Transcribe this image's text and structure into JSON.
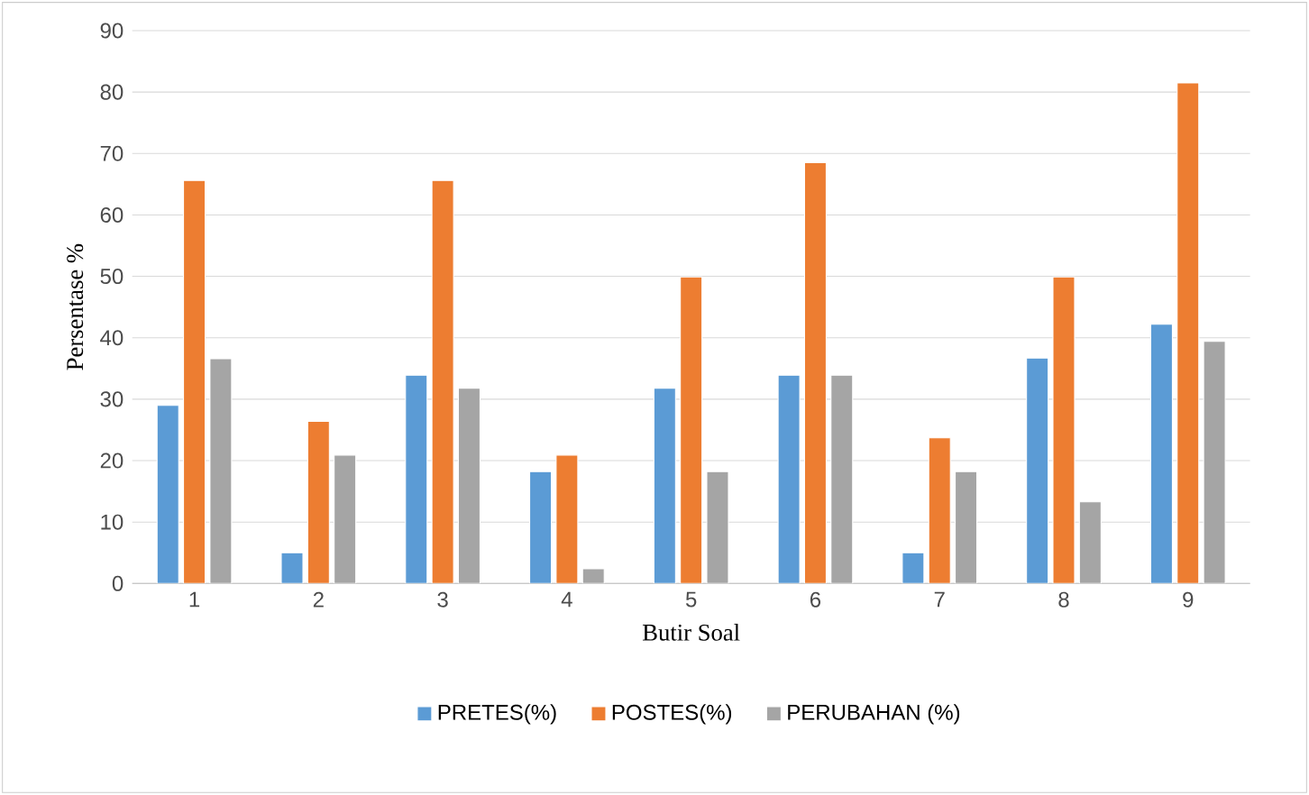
{
  "chart_data": {
    "type": "bar",
    "xlabel": "Butir Soal",
    "ylabel": "Persentase %",
    "categories": [
      "1",
      "2",
      "3",
      "4",
      "5",
      "6",
      "7",
      "8",
      "9"
    ],
    "series": [
      {
        "name": "PRETES(%)",
        "color": "#5b9bd5",
        "values": [
          29,
          5,
          33.9,
          18.2,
          31.8,
          33.9,
          5,
          36.7,
          42.2
        ]
      },
      {
        "name": "POSTES(%)",
        "color": "#ed7d31",
        "values": [
          65.6,
          26.4,
          65.6,
          20.9,
          49.9,
          68.5,
          23.7,
          49.9,
          81.5
        ]
      },
      {
        "name": "PERUBAHAN (%)",
        "color": "#a5a5a5",
        "values": [
          36.6,
          20.9,
          31.8,
          2.4,
          18.2,
          33.9,
          18.2,
          13.3,
          39.4
        ]
      }
    ],
    "ylim": [
      0,
      90
    ],
    "yticks": [
      0,
      10,
      20,
      30,
      40,
      50,
      60,
      70,
      80,
      90
    ],
    "grid": "y",
    "legend": "bottom"
  }
}
